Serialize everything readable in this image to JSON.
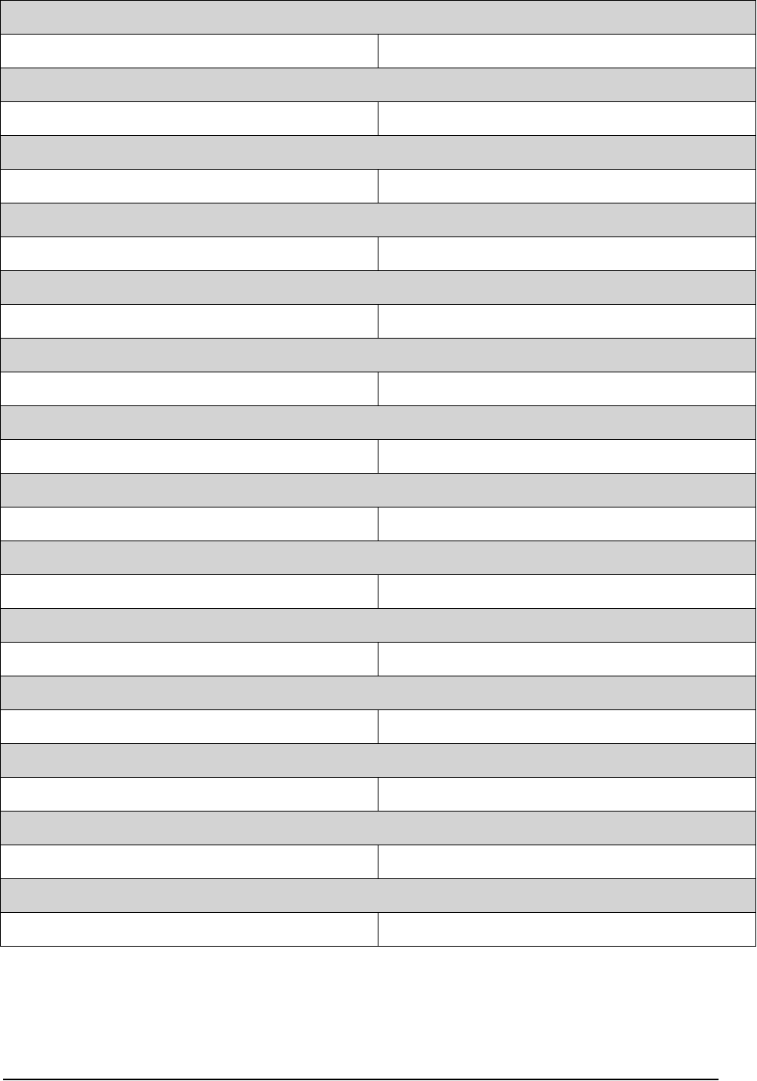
{
  "colors": {
    "section_fill": "#d3d3d3",
    "border": "#000000",
    "background": "#ffffff"
  },
  "rows": [
    {
      "section": "",
      "label": "",
      "value": ""
    },
    {
      "section": "",
      "label": "",
      "value": ""
    },
    {
      "section": "",
      "label": "",
      "value": ""
    },
    {
      "section": "",
      "label": "",
      "value": ""
    },
    {
      "section": "",
      "label": "",
      "value": ""
    },
    {
      "section": "",
      "label": "",
      "value": ""
    },
    {
      "section": "",
      "label": "",
      "value": ""
    },
    {
      "section": "",
      "label": "",
      "value": ""
    },
    {
      "section": "",
      "label": "",
      "value": ""
    },
    {
      "section": "",
      "label": "",
      "value": ""
    },
    {
      "section": "",
      "label": "",
      "value": ""
    },
    {
      "section": "",
      "label": "",
      "value": ""
    },
    {
      "section": "",
      "label": "",
      "value": ""
    },
    {
      "section": "",
      "label": "",
      "value": ""
    }
  ]
}
